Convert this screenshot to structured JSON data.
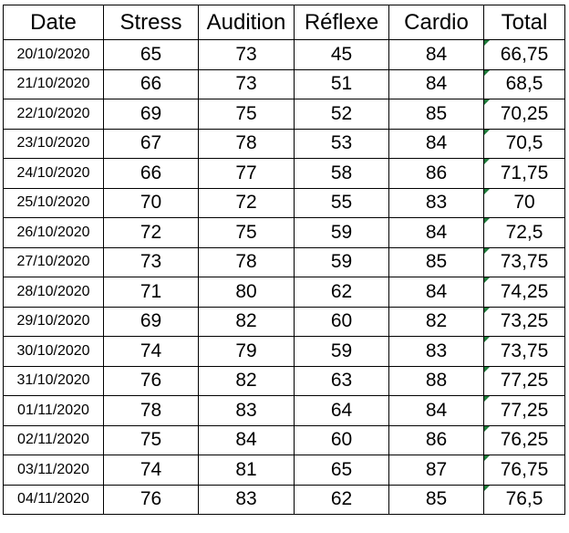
{
  "columns": [
    "Date",
    "Stress",
    "Audition",
    "Réflexe",
    "Cardio",
    "Total"
  ],
  "accent": {
    "number_flag_color": "#1f7a3a"
  },
  "rows": [
    {
      "date": "20/10/2020",
      "stress": "65",
      "audition": "73",
      "reflexe": "45",
      "cardio": "84",
      "total": "66,75"
    },
    {
      "date": "21/10/2020",
      "stress": "66",
      "audition": "73",
      "reflexe": "51",
      "cardio": "84",
      "total": "68,5"
    },
    {
      "date": "22/10/2020",
      "stress": "69",
      "audition": "75",
      "reflexe": "52",
      "cardio": "85",
      "total": "70,25"
    },
    {
      "date": "23/10/2020",
      "stress": "67",
      "audition": "78",
      "reflexe": "53",
      "cardio": "84",
      "total": "70,5"
    },
    {
      "date": "24/10/2020",
      "stress": "66",
      "audition": "77",
      "reflexe": "58",
      "cardio": "86",
      "total": "71,75"
    },
    {
      "date": "25/10/2020",
      "stress": "70",
      "audition": "72",
      "reflexe": "55",
      "cardio": "83",
      "total": "70"
    },
    {
      "date": "26/10/2020",
      "stress": "72",
      "audition": "75",
      "reflexe": "59",
      "cardio": "84",
      "total": "72,5"
    },
    {
      "date": "27/10/2020",
      "stress": "73",
      "audition": "78",
      "reflexe": "59",
      "cardio": "85",
      "total": "73,75"
    },
    {
      "date": "28/10/2020",
      "stress": "71",
      "audition": "80",
      "reflexe": "62",
      "cardio": "84",
      "total": "74,25"
    },
    {
      "date": "29/10/2020",
      "stress": "69",
      "audition": "82",
      "reflexe": "60",
      "cardio": "82",
      "total": "73,25"
    },
    {
      "date": "30/10/2020",
      "stress": "74",
      "audition": "79",
      "reflexe": "59",
      "cardio": "83",
      "total": "73,75"
    },
    {
      "date": "31/10/2020",
      "stress": "76",
      "audition": "82",
      "reflexe": "63",
      "cardio": "88",
      "total": "77,25"
    },
    {
      "date": "01/11/2020",
      "stress": "78",
      "audition": "83",
      "reflexe": "64",
      "cardio": "84",
      "total": "77,25"
    },
    {
      "date": "02/11/2020",
      "stress": "75",
      "audition": "84",
      "reflexe": "60",
      "cardio": "86",
      "total": "76,25"
    },
    {
      "date": "03/11/2020",
      "stress": "74",
      "audition": "81",
      "reflexe": "65",
      "cardio": "87",
      "total": "76,75"
    },
    {
      "date": "04/11/2020",
      "stress": "76",
      "audition": "83",
      "reflexe": "62",
      "cardio": "85",
      "total": "76,5"
    }
  ]
}
